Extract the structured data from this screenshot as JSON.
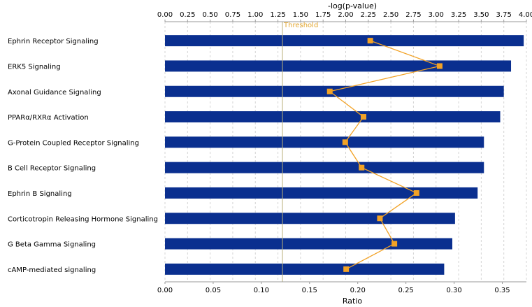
{
  "chart_data": {
    "type": "bar",
    "top_axis": {
      "label": "-log(p-value)",
      "range": [
        0,
        4.0
      ],
      "ticks": [
        "0.00",
        "0.25",
        "0.50",
        "0.75",
        "1.00",
        "1.25",
        "1.50",
        "1.75",
        "2.00",
        "2.25",
        "2.50",
        "2.75",
        "3.00",
        "3.25",
        "3.50",
        "3.75",
        "4.00"
      ]
    },
    "bottom_axis": {
      "label": "Ratio",
      "range": [
        0,
        0.375
      ],
      "ticks": [
        "0.00",
        "0.05",
        "0.10",
        "0.15",
        "0.20",
        "0.25",
        "0.30",
        "0.35"
      ]
    },
    "threshold": {
      "label": "Threshold",
      "value": 1.3
    },
    "categories": [
      "Ephrin Receptor Signaling",
      "ERK5 Signaling",
      "Axonal Guidance Signaling",
      "PPARα/RXRα Activation",
      "G-Protein Coupled Receptor Signaling",
      "B Cell Receptor Signaling",
      "Ephrin B Signaling",
      "Corticotropin Releasing Hormone Signaling",
      "G Beta Gamma Signaling",
      "cAMP-mediated signaling"
    ],
    "series": [
      {
        "values": [
          3.97,
          3.83,
          3.75,
          3.71,
          3.53,
          3.53,
          3.46,
          3.21,
          3.18,
          3.09
        ],
        "color": "#0A2F8F"
      },
      {
        "values": [
          0.213,
          0.285,
          0.171,
          0.206,
          0.187,
          0.204,
          0.261,
          0.223,
          0.238,
          0.188
        ],
        "color": "#F2A225"
      }
    ],
    "grid": true
  }
}
